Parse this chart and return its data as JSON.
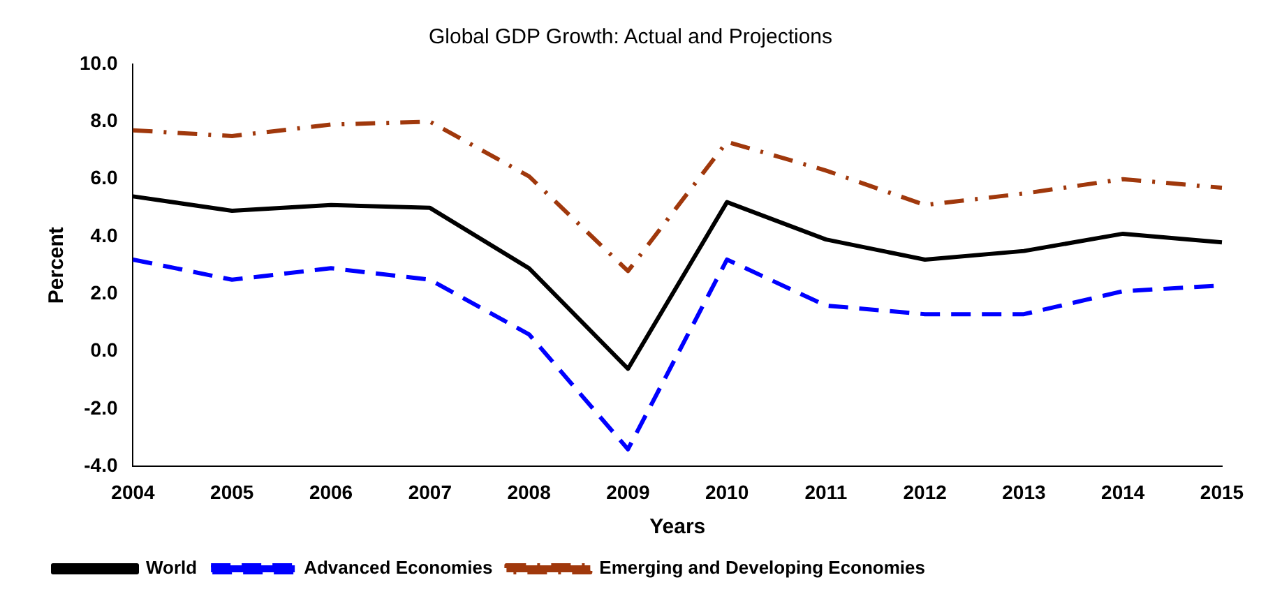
{
  "chart_data": {
    "type": "line",
    "title": "Global GDP Growth: Actual and Projections",
    "xlabel": "Years",
    "ylabel": "Percent",
    "categories": [
      "2004",
      "2005",
      "2006",
      "2007",
      "2008",
      "2009",
      "2010",
      "2011",
      "2012",
      "2013",
      "2014",
      "2015"
    ],
    "series": [
      {
        "name": "World",
        "color": "#000000",
        "line_style": "solid",
        "values": [
          5.4,
          4.9,
          5.1,
          5.0,
          2.9,
          -0.6,
          5.2,
          3.9,
          3.2,
          3.5,
          4.1,
          3.8
        ]
      },
      {
        "name": "Advanced Economies",
        "color": "#0000ff",
        "line_style": "dashed",
        "values": [
          3.2,
          2.5,
          2.9,
          2.5,
          0.6,
          -3.4,
          3.2,
          1.6,
          1.3,
          1.3,
          2.1,
          2.3
        ]
      },
      {
        "name": "Emerging and Developing Economies",
        "color": "#a0380c",
        "line_style": "dashdot",
        "values": [
          7.7,
          7.5,
          7.9,
          8.0,
          6.1,
          2.8,
          7.3,
          6.3,
          5.1,
          5.5,
          6.0,
          5.7
        ]
      }
    ],
    "ylim": [
      -4,
      10
    ],
    "yticks": [
      {
        "value": -4,
        "label": "-4.0"
      },
      {
        "value": -2,
        "label": "-2.0"
      },
      {
        "value": 0,
        "label": "0.0"
      },
      {
        "value": 2,
        "label": "2.0"
      },
      {
        "value": 4,
        "label": "4.0"
      },
      {
        "value": 6,
        "label": "6.0"
      },
      {
        "value": 8,
        "label": "8.0"
      },
      {
        "value": 10,
        "label": "10.0"
      }
    ],
    "grid": false,
    "legend": "bottom left",
    "marker": "none"
  }
}
